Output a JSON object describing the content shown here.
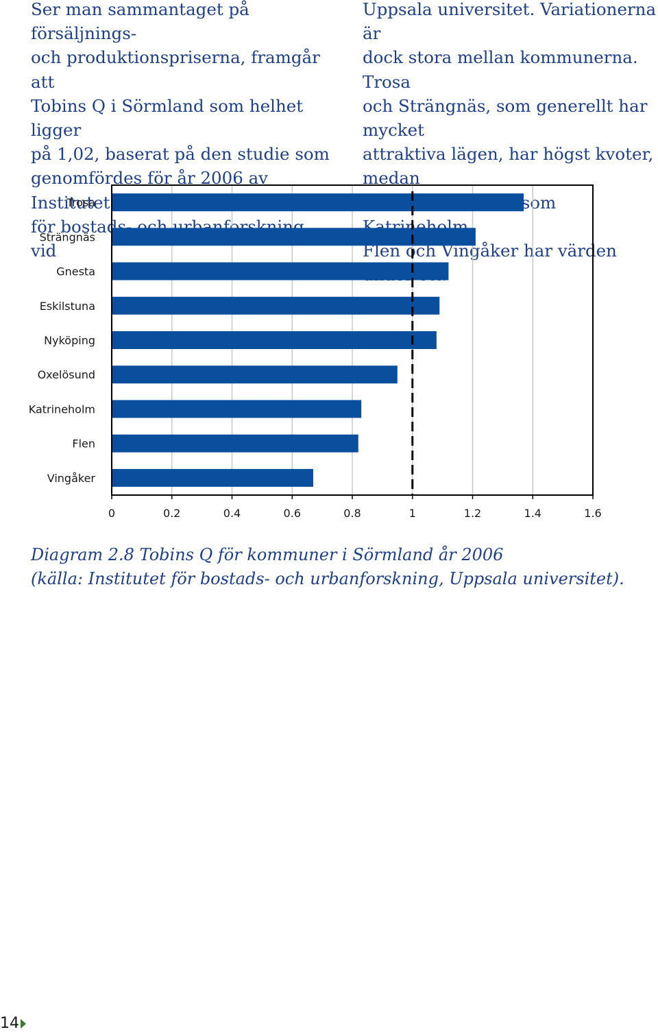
{
  "text_left": "Ser man sammantaget på försäljnings-\noch produktionspriserna, framgår att\nTobins Q i Sörmland som helhet ligger\npå 1,02, baserat på den studie som\ngenomfördes för år 2006 av Institutet\nför bostads- och urbanforskning vid",
  "text_right": "Uppsala universitet. Variationerna är\ndock stora mellan kommunerna. Trosa\noch Strängnäs, som generellt har mycket\nattraktiva lägen, har högst kvoter, medan\ninlandskommuner som Katrineholm,\nFlen och Vingåker har värden under ett.",
  "chart_data": {
    "type": "bar",
    "orientation": "horizontal",
    "categories": [
      "Trosa",
      "Strängnäs",
      "Gnesta",
      "Eskilstuna",
      "Nyköping",
      "Oxelösund",
      "Katrineholm",
      "Flen",
      "Vingåker"
    ],
    "values": [
      1.37,
      1.21,
      1.12,
      1.09,
      1.08,
      0.95,
      0.83,
      0.82,
      0.67
    ],
    "xlim": [
      0,
      1.6
    ],
    "xticks": [
      "0",
      "0.2",
      "0.4",
      "0.6",
      "0.8",
      "1",
      "1.2",
      "1.4",
      "1.6"
    ],
    "reference_line": 1,
    "grid": true,
    "bar_color": "#0a4f9e"
  },
  "caption": {
    "line1": "Diagram 2.8 Tobins Q för kommuner i Sörmland år 2006",
    "line2": "(källa: Institutet för bostads- och urbanforskning, Uppsala universitet)."
  },
  "footer": {
    "page_number": "14"
  }
}
